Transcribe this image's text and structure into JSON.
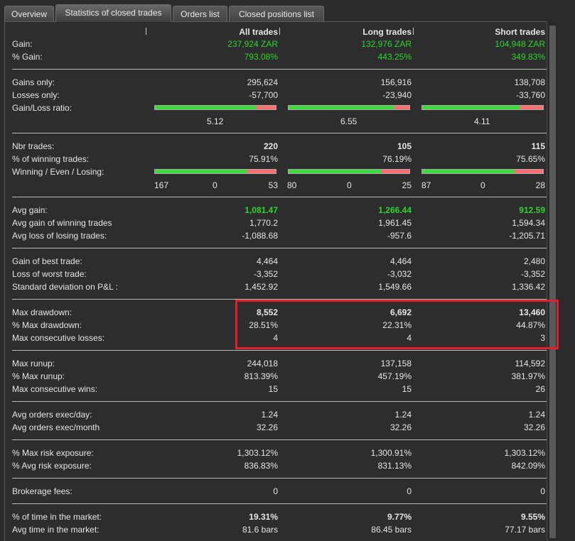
{
  "tabs": [
    "Overview",
    "Statistics of closed trades",
    "Orders list",
    "Closed positions list"
  ],
  "headers": [
    "All trades",
    "Long trades",
    "Short trades"
  ],
  "rows": {
    "gain": {
      "label": "Gain:",
      "v": [
        "237,924 ZAR",
        "132,976 ZAR",
        "104,948 ZAR"
      ]
    },
    "pct_gain": {
      "label": "% Gain:",
      "v": [
        "793.08%",
        "443.25%",
        "349.83%"
      ]
    },
    "gains_only": {
      "label": "Gains only:",
      "v": [
        "295,624",
        "156,916",
        "138,708"
      ]
    },
    "losses_only": {
      "label": "Losses only:",
      "v": [
        "-57,700",
        "-23,940",
        "-33,760"
      ]
    },
    "gl_ratio": {
      "label": "Gain/Loss ratio:",
      "v": [
        "5.12",
        "6.55",
        "4.11"
      ],
      "fill": [
        0.837,
        0.868,
        0.804
      ]
    },
    "nbr_trades": {
      "label": "Nbr trades:",
      "v": [
        "220",
        "105",
        "115"
      ]
    },
    "pct_winning": {
      "label": "% of winning trades:",
      "v": [
        "75.91%",
        "76.19%",
        "75.65%"
      ]
    },
    "wel": {
      "label": "Winning / Even / Losing:",
      "fill": [
        0.7591,
        0.7619,
        0.7565
      ],
      "counts": [
        [
          "167",
          "0",
          "53"
        ],
        [
          "80",
          "0",
          "25"
        ],
        [
          "87",
          "0",
          "28"
        ]
      ]
    },
    "avg_gain": {
      "label": "Avg gain:",
      "v": [
        "1,081.47",
        "1,266.44",
        "912.59"
      ]
    },
    "avg_gain_win": {
      "label": "Avg gain of winning trades",
      "v": [
        "1,770.2",
        "1,961.45",
        "1,594.34"
      ]
    },
    "avg_loss_lose": {
      "label": "Avg loss of losing trades:",
      "v": [
        "-1,088.68",
        "-957.6",
        "-1,205.71"
      ]
    },
    "best": {
      "label": "Gain of best trade:",
      "v": [
        "4,464",
        "4,464",
        "2,480"
      ]
    },
    "worst": {
      "label": "Loss of worst trade:",
      "v": [
        "-3,352",
        "-3,032",
        "-3,352"
      ]
    },
    "stddev": {
      "label": "Standard deviation on P&L :",
      "v": [
        "1,452.92",
        "1,549.66",
        "1,336.42"
      ]
    },
    "max_dd": {
      "label": "Max drawdown:",
      "v": [
        "8,552",
        "6,692",
        "13,460"
      ]
    },
    "pct_max_dd": {
      "label": "% Max drawdown:",
      "v": [
        "28.51%",
        "22.31%",
        "44.87%"
      ]
    },
    "max_consec_losses": {
      "label": "Max consecutive losses:",
      "v": [
        "4",
        "4",
        "3"
      ]
    },
    "max_runup": {
      "label": "Max runup:",
      "v": [
        "244,018",
        "137,158",
        "114,592"
      ]
    },
    "pct_max_runup": {
      "label": "% Max runup:",
      "v": [
        "813.39%",
        "457.19%",
        "381.97%"
      ]
    },
    "max_consec_wins": {
      "label": "Max consecutive wins:",
      "v": [
        "15",
        "15",
        "26"
      ]
    },
    "avg_exec_day": {
      "label": "Avg orders exec/day:",
      "v": [
        "1.24",
        "1.24",
        "1.24"
      ]
    },
    "avg_exec_month": {
      "label": "Avg orders exec/month",
      "v": [
        "32.26",
        "32.26",
        "32.26"
      ]
    },
    "max_risk": {
      "label": "% Max risk exposure:",
      "v": [
        "1,303.12%",
        "1,300.91%",
        "1,303.12%"
      ]
    },
    "avg_risk": {
      "label": "% Avg risk exposure:",
      "v": [
        "836.83%",
        "831.13%",
        "842.09%"
      ]
    },
    "brokerage": {
      "label": "Brokerage fees:",
      "v": [
        "0",
        "0",
        "0"
      ]
    },
    "time_market": {
      "label": "% of time in the market:",
      "v": [
        "19.31%",
        "9.77%",
        "9.55%"
      ]
    },
    "avg_time": {
      "label": "Avg time in the market:",
      "v": [
        "81.6 bars",
        "86.45 bars",
        "77.17 bars"
      ]
    }
  },
  "colors": {
    "gain_green": "#2fd42f",
    "bar_green": "#3ddc3d",
    "bar_red": "#ff6e6e",
    "highlight": "#e0202a"
  }
}
